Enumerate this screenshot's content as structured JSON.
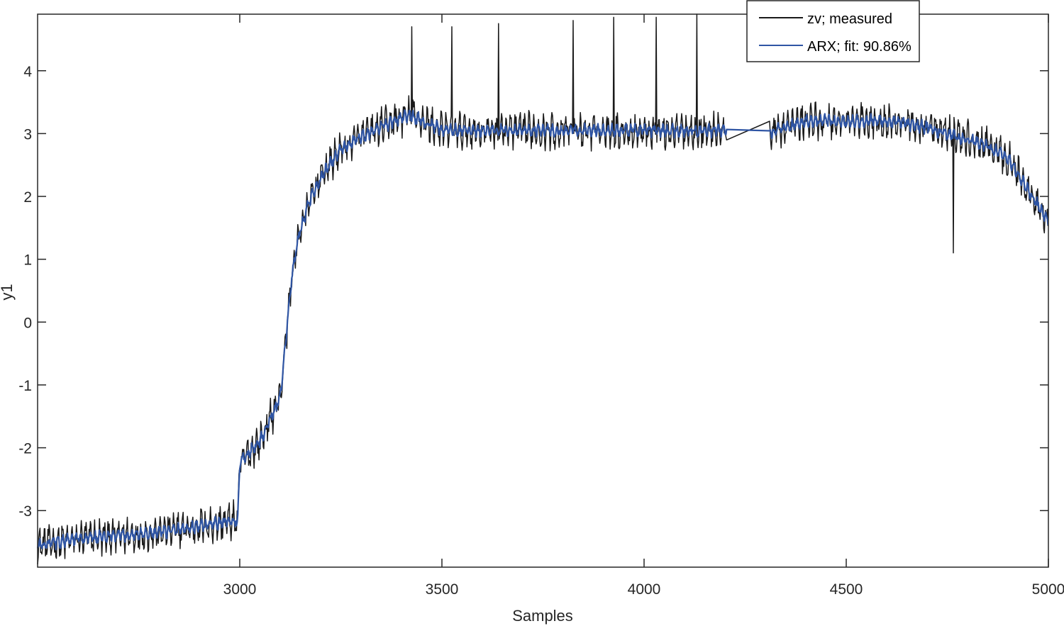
{
  "chart_data": {
    "type": "line",
    "xlabel": "Samples",
    "ylabel": "y1",
    "xlim": [
      2500,
      5000
    ],
    "ylim": [
      -3.9,
      4.9
    ],
    "x_ticks": [
      3000,
      3500,
      4000,
      4500,
      5000
    ],
    "y_ticks": [
      -3,
      -2,
      -1,
      0,
      1,
      2,
      3,
      4
    ],
    "grid": false,
    "legend_position": "top-right",
    "colors": {
      "measured": "#1a1a1a",
      "model": "#2f55a4",
      "axes": "#262626"
    },
    "series": [
      {
        "name": "zv; measured",
        "noise_amplitude": 0.28,
        "x": [
          2500,
          2600,
          2700,
          2800,
          2900,
          2995,
          3000,
          3005,
          3050,
          3100,
          3115,
          3130,
          3150,
          3175,
          3200,
          3250,
          3300,
          3350,
          3400,
          3420,
          3500,
          3600,
          3700,
          3800,
          3900,
          4000,
          4100,
          4200,
          4300,
          4400,
          4500,
          4600,
          4700,
          4800,
          4850,
          4900,
          4950,
          5000
        ],
        "y": [
          -3.55,
          -3.45,
          -3.4,
          -3.35,
          -3.25,
          -3.15,
          -2.3,
          -2.2,
          -1.9,
          -1.2,
          -0.2,
          0.8,
          1.5,
          1.95,
          2.3,
          2.75,
          2.95,
          3.1,
          3.25,
          3.3,
          3.05,
          3.05,
          3.05,
          3.05,
          3.05,
          3.05,
          3.05,
          3.05,
          3.0,
          3.2,
          3.2,
          3.2,
          3.1,
          2.9,
          2.8,
          2.6,
          2.1,
          1.6
        ],
        "spikes": [
          {
            "x": 3425,
            "y": 4.7
          },
          {
            "x": 3525,
            "y": 4.7
          },
          {
            "x": 3640,
            "y": 4.75
          },
          {
            "x": 3825,
            "y": 4.8
          },
          {
            "x": 3925,
            "y": 4.85
          },
          {
            "x": 4030,
            "y": 4.85
          },
          {
            "x": 4130,
            "y": 4.9
          },
          {
            "x": 4765,
            "y": 1.1
          }
        ]
      },
      {
        "name": "ARX; fit: 90.86%",
        "noise_amplitude": 0.1,
        "x": [
          2500,
          2600,
          2700,
          2800,
          2900,
          2995,
          3000,
          3005,
          3050,
          3100,
          3115,
          3130,
          3150,
          3175,
          3200,
          3250,
          3300,
          3350,
          3400,
          3420,
          3500,
          3600,
          3700,
          3800,
          3900,
          4000,
          4100,
          4200,
          4300,
          4400,
          4500,
          4600,
          4700,
          4800,
          4850,
          4900,
          4950,
          5000
        ],
        "y": [
          -3.55,
          -3.45,
          -3.4,
          -3.35,
          -3.25,
          -3.15,
          -2.3,
          -2.2,
          -1.9,
          -1.2,
          -0.2,
          0.8,
          1.5,
          1.95,
          2.3,
          2.75,
          2.95,
          3.1,
          3.25,
          3.3,
          3.05,
          3.05,
          3.05,
          3.05,
          3.05,
          3.05,
          3.05,
          3.05,
          3.0,
          3.2,
          3.2,
          3.2,
          3.1,
          2.9,
          2.8,
          2.6,
          2.1,
          1.6
        ]
      }
    ]
  }
}
